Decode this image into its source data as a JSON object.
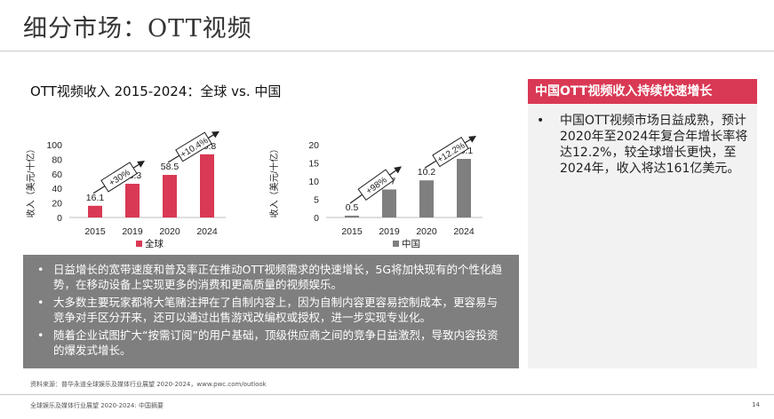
{
  "page": {
    "title": "细分市场：OTT视频",
    "chart_title": "OTT视频收入 2015-2024：全球 vs. 中国",
    "source": "资料来源：普华永道全球娱乐及媒体行业展望 2020-2024，www.pwc.com/outlook",
    "footer": "全球娱乐及媒体行业展望 2020-2024: 中国摘要",
    "page_number": "14"
  },
  "right_panel": {
    "header": "中国OTT视频收入持续快速增长",
    "bullet": "中国OTT视频市场日益成熟，预计2020年至2024年复合年增长率将达12.2%，较全球增长更快，至 2024年，收入将达161亿美元。"
  },
  "bullets": [
    "日益增长的宽带速度和普及率正在推动OTT视频需求的快速增长，5G将加快现有的个性化趋势，在移动设备上实现更多的消费和更高质量的视频娱乐。",
    "大多数主要玩家都将大笔赌注押在了自制内容上，因为自制内容更容易控制成本，更容易与竞争对手区分开来，还可以通过出售游戏改编权或授权，进一步实现专业化。",
    "随着企业试图扩大“按需订阅”的用户基础，顶级供应商之间的竞争日益激烈，导致内容投资的爆发式增长。"
  ],
  "bullet_symbol": "•",
  "colors": {
    "global": "#d93954",
    "china": "#7f7f7f",
    "accent": "#d93954",
    "panel_bg": "#f3f2f2"
  },
  "chart_data": [
    {
      "type": "bar",
      "categories": [
        "2015",
        "2019",
        "2020",
        "2024"
      ],
      "values": [
        16.1,
        46.3,
        58.5,
        86.8
      ],
      "value_labels": [
        "16.1",
        "46.3",
        "58.5",
        "86.8"
      ],
      "series": [
        {
          "name": "全球",
          "values": [
            16.1,
            46.3,
            58.5,
            86.8
          ]
        }
      ],
      "ylabel": "收入（美元/十亿）",
      "ylim": [
        0,
        100
      ],
      "yticks": [
        "0",
        "20",
        "40",
        "60",
        "80",
        "100"
      ],
      "ytick_values": [
        0,
        20,
        40,
        60,
        80,
        100
      ],
      "legend": "全球",
      "legend_position": "bottom",
      "color": "#d93954",
      "grid": false,
      "annotations": [
        {
          "text": "+30%",
          "from": "2015",
          "to": "2019"
        },
        {
          "text": "+10.4%",
          "from": "2020",
          "to": "2024"
        }
      ]
    },
    {
      "type": "bar",
      "categories": [
        "2015",
        "2019",
        "2020",
        "2024"
      ],
      "values": [
        0.5,
        7.7,
        10.2,
        16.1
      ],
      "value_labels": [
        "0.5",
        "7.7",
        "10.2",
        "16.1"
      ],
      "series": [
        {
          "name": "中国",
          "values": [
            0.5,
            7.7,
            10.2,
            16.1
          ]
        }
      ],
      "ylabel": "收入（美元/十亿）",
      "ylim": [
        0,
        20
      ],
      "yticks": [
        "0",
        "5",
        "10",
        "15",
        "20"
      ],
      "ytick_values": [
        0,
        5,
        10,
        15,
        20
      ],
      "legend": "中国",
      "legend_position": "bottom",
      "color": "#7f7f7f",
      "grid": false,
      "annotations": [
        {
          "text": "+98%",
          "from": "2015",
          "to": "2019"
        },
        {
          "text": "+12.2%",
          "from": "2020",
          "to": "2024"
        }
      ]
    }
  ]
}
